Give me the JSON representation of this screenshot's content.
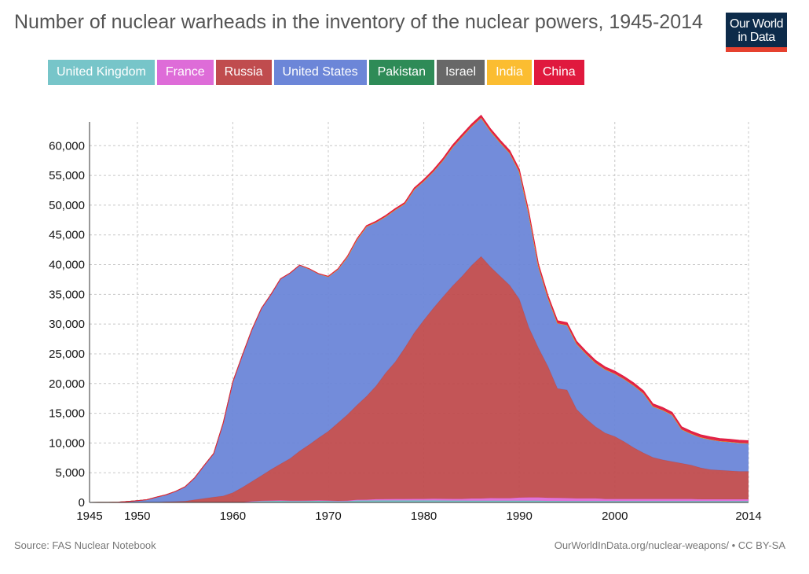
{
  "title": "Number of nuclear warheads in the inventory of the nuclear powers, 1945-2014",
  "logo": {
    "line1": "Our World",
    "line2": "in Data"
  },
  "footer": {
    "source": "Source: FAS Nuclear Notebook",
    "url": "OurWorldInData.org/nuclear-weapons/ • CC BY-SA"
  },
  "chart_data": {
    "type": "area",
    "stacked": true,
    "title": "Number of nuclear warheads in the inventory of the nuclear powers, 1945-2014",
    "xlabel": "",
    "ylabel": "",
    "xlim": [
      1945,
      2014
    ],
    "ylim": [
      0,
      64000
    ],
    "x_ticks": [
      1945,
      1950,
      1960,
      1970,
      1980,
      1990,
      2000,
      2014
    ],
    "y_ticks": [
      0,
      5000,
      10000,
      15000,
      20000,
      25000,
      30000,
      35000,
      40000,
      45000,
      50000,
      55000,
      60000
    ],
    "grid": true,
    "legend_position": "top",
    "x": [
      1945,
      1946,
      1947,
      1948,
      1949,
      1950,
      1951,
      1952,
      1953,
      1954,
      1955,
      1956,
      1957,
      1958,
      1959,
      1960,
      1961,
      1962,
      1963,
      1964,
      1965,
      1966,
      1967,
      1968,
      1969,
      1970,
      1971,
      1972,
      1973,
      1974,
      1975,
      1976,
      1977,
      1978,
      1979,
      1980,
      1981,
      1982,
      1983,
      1984,
      1985,
      1986,
      1987,
      1988,
      1989,
      1990,
      1991,
      1992,
      1993,
      1994,
      1995,
      1996,
      1997,
      1998,
      1999,
      2000,
      2001,
      2002,
      2003,
      2004,
      2005,
      2006,
      2007,
      2008,
      2009,
      2010,
      2011,
      2012,
      2013,
      2014
    ],
    "series": [
      {
        "name": "United Kingdom",
        "color": "#77c5c9",
        "values": [
          0,
          0,
          0,
          0,
          0,
          0,
          0,
          0,
          1,
          5,
          10,
          15,
          20,
          22,
          25,
          30,
          50,
          205,
          280,
          310,
          310,
          270,
          270,
          280,
          308,
          280,
          220,
          220,
          325,
          325,
          350,
          350,
          350,
          350,
          350,
          350,
          350,
          335,
          320,
          320,
          300,
          300,
          300,
          300,
          300,
          300,
          300,
          300,
          250,
          250,
          234,
          234,
          234,
          234,
          234,
          234,
          234,
          234,
          225,
          225,
          225,
          225,
          225,
          225,
          225,
          225,
          225,
          225,
          225,
          225
        ]
      },
      {
        "name": "France",
        "color": "#de6cd8",
        "values": [
          0,
          0,
          0,
          0,
          0,
          0,
          0,
          0,
          0,
          0,
          0,
          0,
          0,
          0,
          0,
          0,
          0,
          0,
          0,
          4,
          32,
          36,
          36,
          36,
          36,
          36,
          45,
          70,
          116,
          145,
          188,
          212,
          228,
          235,
          252,
          250,
          274,
          279,
          280,
          280,
          360,
          355,
          420,
          411,
          412,
          505,
          540,
          538,
          524,
          512,
          500,
          450,
          450,
          450,
          350,
          350,
          350,
          350,
          350,
          350,
          350,
          350,
          350,
          350,
          300,
          300,
          300,
          300,
          300,
          300
        ]
      },
      {
        "name": "Russia",
        "color": "#c04c4e",
        "values": [
          0,
          0,
          0,
          0,
          0,
          5,
          25,
          50,
          120,
          150,
          200,
          426,
          660,
          869,
          1060,
          1605,
          2471,
          3322,
          4238,
          5221,
          6129,
          7089,
          8339,
          9399,
          10538,
          11643,
          13092,
          14478,
          15915,
          17385,
          19055,
          21205,
          23044,
          25393,
          27935,
          30062,
          32049,
          33952,
          35804,
          37431,
          39197,
          40723,
          38859,
          37333,
          35805,
          33417,
          28595,
          25154,
          22101,
          18399,
          18179,
          14978,
          13389,
          12029,
          11089,
          10500,
          9618,
          8600,
          7750,
          7000,
          6600,
          6300,
          6000,
          5700,
          5300,
          5000,
          4900,
          4800,
          4700,
          4700
        ]
      },
      {
        "name": "United States",
        "color": "#6c86d8",
        "values": [
          2,
          9,
          13,
          50,
          170,
          299,
          438,
          841,
          1169,
          1703,
          2422,
          3692,
          5543,
          7345,
          12298,
          18638,
          22229,
          25540,
          28133,
          29463,
          31139,
          31175,
          31255,
          29561,
          27552,
          26008,
          25830,
          26516,
          27835,
          28537,
          27519,
          26295,
          25590,
          24243,
          24107,
          23368,
          22968,
          22941,
          23305,
          23459,
          23368,
          23317,
          22812,
          22447,
          22217,
          21392,
          19008,
          13708,
          11511,
          10979,
          10904,
          11011,
          10903,
          10732,
          10685,
          10577,
          10526,
          10457,
          10027,
          8570,
          8360,
          7853,
          5709,
          5273,
          5113,
          5066,
          4897,
          4881,
          4804,
          4717
        ]
      },
      {
        "name": "Pakistan",
        "color": "#2e8b57",
        "values": [
          0,
          0,
          0,
          0,
          0,
          0,
          0,
          0,
          0,
          0,
          0,
          0,
          0,
          0,
          0,
          0,
          0,
          0,
          0,
          0,
          0,
          0,
          0,
          0,
          0,
          0,
          0,
          0,
          0,
          0,
          0,
          0,
          0,
          0,
          0,
          0,
          0,
          0,
          0,
          0,
          0,
          0,
          0,
          0,
          0,
          0,
          0,
          0,
          0,
          0,
          0,
          0,
          0,
          0,
          0,
          0,
          0,
          0,
          0,
          0,
          0,
          0,
          0,
          0,
          0,
          0,
          0,
          0,
          0,
          0
        ]
      },
      {
        "name": "Israel",
        "color": "#686868",
        "values": [
          0,
          0,
          0,
          0,
          0,
          0,
          0,
          0,
          0,
          0,
          0,
          0,
          0,
          0,
          0,
          0,
          0,
          0,
          0,
          0,
          0,
          0,
          0,
          0,
          0,
          0,
          0,
          0,
          0,
          0,
          0,
          0,
          0,
          0,
          0,
          0,
          0,
          0,
          0,
          0,
          0,
          0,
          0,
          0,
          0,
          0,
          0,
          0,
          0,
          0,
          0,
          0,
          0,
          0,
          0,
          0,
          0,
          0,
          0,
          0,
          0,
          0,
          0,
          0,
          0,
          0,
          0,
          0,
          0,
          0
        ]
      },
      {
        "name": "India",
        "color": "#fbbd31",
        "values": [
          0,
          0,
          0,
          0,
          0,
          0,
          0,
          0,
          0,
          0,
          0,
          0,
          0,
          0,
          0,
          0,
          0,
          0,
          0,
          0,
          0,
          0,
          0,
          0,
          0,
          0,
          0,
          0,
          0,
          0,
          0,
          0,
          0,
          0,
          0,
          0,
          0,
          0,
          0,
          0,
          0,
          0,
          0,
          0,
          0,
          0,
          0,
          0,
          0,
          0,
          0,
          0,
          0,
          0,
          0,
          0,
          0,
          0,
          0,
          0,
          0,
          0,
          0,
          0,
          0,
          0,
          0,
          0,
          0,
          0
        ]
      },
      {
        "name": "China",
        "color": "#e0193e",
        "values": [
          0,
          0,
          0,
          0,
          0,
          0,
          0,
          0,
          0,
          0,
          0,
          0,
          0,
          0,
          0,
          0,
          0,
          0,
          0,
          1,
          5,
          20,
          25,
          35,
          40,
          75,
          100,
          130,
          150,
          170,
          185,
          190,
          200,
          220,
          250,
          280,
          300,
          330,
          360,
          380,
          400,
          410,
          420,
          430,
          430,
          430,
          430,
          430,
          430,
          430,
          430,
          430,
          430,
          430,
          430,
          430,
          430,
          430,
          430,
          430,
          430,
          430,
          430,
          430,
          430,
          430,
          430,
          430,
          430,
          430
        ]
      }
    ]
  }
}
